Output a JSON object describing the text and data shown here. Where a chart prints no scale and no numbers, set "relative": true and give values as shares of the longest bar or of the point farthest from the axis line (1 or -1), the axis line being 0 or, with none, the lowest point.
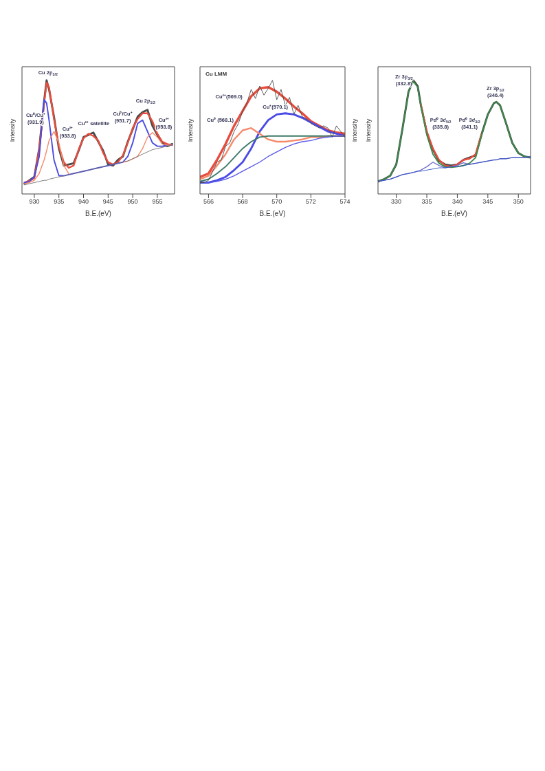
{
  "chart_data": [
    {
      "type": "line",
      "relative": true,
      "tick_labels": "x",
      "xlabel": "B.E.(eV)",
      "ylabel": "Intensity",
      "xlim": [
        927.5,
        958.5
      ],
      "xticks": [
        930,
        935,
        940,
        945,
        950,
        955
      ],
      "x": [
        928,
        929,
        930,
        931,
        932,
        932.5,
        933,
        934,
        935,
        936,
        937,
        938,
        939,
        940,
        941,
        942,
        943,
        944,
        945,
        946,
        947,
        948,
        949,
        950,
        951,
        952,
        953,
        954,
        955,
        956,
        957,
        958
      ],
      "series": [
        {
          "color": "#4a4a4a",
          "values": [
            0.09,
            0.12,
            0.15,
            0.4,
            0.82,
            1.0,
            0.92,
            0.68,
            0.4,
            0.25,
            0.26,
            0.27,
            0.38,
            0.5,
            0.52,
            0.54,
            0.46,
            0.38,
            0.26,
            0.25,
            0.3,
            0.33,
            0.46,
            0.57,
            0.68,
            0.72,
            0.74,
            0.6,
            0.52,
            0.45,
            0.42,
            0.44
          ]
        },
        {
          "color": "#e84c3d",
          "values": [
            0.1,
            0.115,
            0.14,
            0.39,
            0.8,
            0.98,
            0.94,
            0.66,
            0.42,
            0.28,
            0.23,
            0.25,
            0.39,
            0.49,
            0.53,
            0.51,
            0.47,
            0.36,
            0.28,
            0.26,
            0.28,
            0.34,
            0.45,
            0.58,
            0.66,
            0.71,
            0.71,
            0.64,
            0.53,
            0.46,
            0.44,
            0.43
          ]
        },
        {
          "color": "#4a4ae6",
          "values": [
            0.1,
            0.11,
            0.15,
            0.33,
            0.83,
            0.8,
            0.65,
            0.3,
            0.16,
            0.16,
            0.17,
            0.18,
            0.19,
            0.2,
            0.21,
            0.22,
            0.23,
            0.24,
            0.25,
            0.26,
            0.27,
            0.28,
            0.33,
            0.45,
            0.62,
            0.65,
            0.55,
            0.45,
            0.42,
            0.42,
            0.43,
            0.43
          ]
        },
        {
          "color": "#f58a6a",
          "values": [
            0.09,
            0.1,
            0.12,
            0.18,
            0.3,
            0.38,
            0.47,
            0.55,
            0.45,
            0.25,
            0.18,
            null,
            null,
            null,
            null,
            null,
            null,
            null,
            null,
            null,
            null,
            0.28,
            0.29,
            0.31,
            0.33,
            0.4,
            0.5,
            0.54,
            0.5,
            0.44,
            0.43,
            0.43
          ]
        },
        {
          "color": "#6e6e6e",
          "values": [
            0.08,
            0.09,
            0.1,
            0.11,
            0.12,
            0.12,
            0.13,
            0.14,
            0.15,
            0.16,
            0.17,
            0.18,
            0.19,
            0.2,
            0.21,
            0.22,
            0.23,
            0.24,
            0.25,
            0.26,
            0.27,
            0.28,
            0.29,
            0.31,
            0.33,
            0.35,
            0.37,
            0.39,
            0.4,
            0.41,
            0.42,
            0.43
          ]
        }
      ],
      "annotations": [
        "Cu 2p$_{3/2}$",
        "Cu⁰/Cu⁺\n(931.9)",
        "Cu²⁺\n(933.8)",
        "Cu²⁺ satellite",
        "Cu⁰/Cu⁺\n(951.7)",
        "Cu 2p$_{1/2}$",
        "Cu²⁺\n(953.8)"
      ]
    },
    {
      "type": "line",
      "relative": true,
      "tick_labels": "x",
      "title": "Cu LMM",
      "xlabel": "B.E.(eV)",
      "ylabel": "Intensity",
      "y2label": "Intensity",
      "xlim": [
        565.5,
        574
      ],
      "xticks": [
        566,
        568,
        570,
        572,
        574
      ],
      "x": [
        565.5,
        566,
        566.5,
        567,
        567.5,
        568,
        568.5,
        569,
        569.5,
        570,
        570.5,
        571,
        571.5,
        572,
        572.5,
        573,
        573.5,
        574
      ],
      "series": [
        {
          "color": "#e84c3d",
          "values": [
            0.15,
            0.18,
            0.3,
            0.44,
            0.6,
            0.73,
            0.86,
            0.93,
            0.94,
            0.9,
            0.84,
            0.77,
            0.71,
            0.64,
            0.6,
            0.56,
            0.54,
            0.53
          ]
        },
        {
          "color": "#4a4ae6",
          "values": [
            0.1,
            0.1,
            0.12,
            0.15,
            0.21,
            0.28,
            0.4,
            0.55,
            0.65,
            0.7,
            0.71,
            0.7,
            0.67,
            0.63,
            0.59,
            0.55,
            0.53,
            0.51
          ]
        },
        {
          "color": "#f58a6a",
          "values": [
            0.13,
            0.16,
            0.25,
            0.35,
            0.48,
            0.56,
            0.58,
            0.53,
            0.48,
            0.46,
            0.46,
            0.47,
            0.48,
            0.5,
            0.5,
            0.51,
            0.51,
            0.51
          ]
        },
        {
          "color": "#3e7a6a",
          "values": [
            0.11,
            0.13,
            0.18,
            0.24,
            0.32,
            0.4,
            0.46,
            0.5,
            0.51,
            0.51,
            0.51,
            0.51,
            0.51,
            0.51,
            0.51,
            0.51,
            0.51,
            0.51
          ]
        },
        {
          "color": "#5a5ae8",
          "values": [
            0.1,
            0.1,
            0.11,
            0.13,
            0.16,
            0.2,
            0.24,
            0.28,
            0.33,
            0.37,
            0.41,
            0.44,
            0.46,
            0.47,
            0.49,
            0.5,
            0.51,
            0.51
          ]
        },
        {
          "color": "#4a4a4a",
          "x": [
            565.5,
            565.75,
            566,
            566.25,
            566.5,
            566.75,
            567,
            567.25,
            567.5,
            567.75,
            568,
            568.25,
            568.5,
            568.75,
            569,
            569.25,
            569.5,
            569.75,
            570,
            570.25,
            570.5,
            570.75,
            571,
            571.25,
            571.5,
            571.75,
            572,
            572.25,
            572.5,
            572.75,
            573,
            573.25,
            573.5,
            573.75,
            574
          ],
          "values": [
            0.1,
            0.1,
            0.12,
            0.2,
            0.28,
            0.3,
            0.42,
            0.45,
            0.55,
            0.62,
            0.73,
            0.8,
            0.92,
            0.84,
            0.95,
            0.87,
            0.93,
            1.0,
            0.83,
            0.92,
            0.78,
            0.85,
            0.7,
            0.78,
            0.68,
            0.66,
            0.62,
            0.6,
            0.58,
            0.6,
            0.58,
            0.5,
            0.6,
            0.55,
            0.5
          ]
        }
      ],
      "annotations": [
        "Cu²⁺(569.0)",
        "Cu⁰ (568.1)",
        "Cu⁺(570.1)"
      ]
    },
    {
      "type": "line",
      "relative": true,
      "tick_labels": "x",
      "xlabel": "B.E.(eV)",
      "ylabel": "Intensity",
      "xlim": [
        327,
        352
      ],
      "xticks": [
        330,
        335,
        340,
        345,
        350
      ],
      "x": [
        327,
        328,
        329,
        330,
        331,
        332,
        332.8,
        333.5,
        334,
        335,
        336,
        337,
        338,
        339,
        340,
        341,
        342,
        343,
        344,
        345,
        346,
        346.4,
        347,
        348,
        349,
        350,
        351,
        352
      ],
      "series": [
        {
          "color": "#4a4a4a",
          "values": [
            0.11,
            0.13,
            0.16,
            0.26,
            0.57,
            0.9,
            1.0,
            0.95,
            0.79,
            0.54,
            0.39,
            0.29,
            0.26,
            0.25,
            0.26,
            0.3,
            0.32,
            0.34,
            0.53,
            0.7,
            0.8,
            0.81,
            0.78,
            0.62,
            0.45,
            0.36,
            0.33,
            0.32
          ]
        },
        {
          "color": "#e84c3d",
          "values": [
            null,
            null,
            null,
            null,
            null,
            null,
            null,
            null,
            0.79,
            0.55,
            0.4,
            0.3,
            0.25,
            0.24,
            0.26,
            0.3,
            0.31,
            0.35,
            0.53,
            null,
            null,
            null,
            null,
            null,
            null,
            null,
            null,
            null
          ]
        },
        {
          "color": "#3a8a4a",
          "values": [
            0.11,
            0.13,
            0.16,
            0.26,
            0.57,
            0.9,
            0.99,
            0.94,
            0.78,
            0.52,
            0.35,
            0.27,
            0.24,
            0.235,
            0.24,
            0.25,
            0.27,
            0.32,
            0.52,
            0.7,
            0.8,
            0.81,
            0.78,
            0.62,
            0.45,
            0.36,
            0.33,
            0.32
          ]
        },
        {
          "color": "#7070d0",
          "values": [
            0.11,
            0.12,
            0.13,
            0.15,
            0.17,
            0.18,
            0.19,
            0.2,
            0.21,
            0.24,
            0.28,
            0.25,
            0.23,
            0.24,
            0.25,
            0.275,
            0.26,
            0.27,
            0.28,
            0.29,
            0.3,
            0.3,
            0.31,
            0.31,
            0.32,
            0.32,
            0.32,
            0.33
          ]
        },
        {
          "color": "#3050c0",
          "values": [
            0.11,
            0.12,
            0.13,
            0.15,
            0.17,
            0.18,
            0.19,
            0.2,
            0.2,
            0.21,
            0.22,
            0.23,
            0.23,
            0.24,
            0.24,
            0.25,
            0.26,
            0.27,
            0.28,
            0.29,
            0.3,
            0.3,
            0.31,
            0.31,
            0.32,
            0.32,
            0.32,
            0.33
          ]
        }
      ],
      "annotations": [
        "Zr 3p$_{3/2}$\n(332.8)",
        "Zr 3p$_{1/2}$\n(346.4)",
        "Pd⁰ 3d$_{5/2}$\n(335.8)",
        "Pd⁰ 3d$_{3/2}$\n(341.1)"
      ]
    }
  ]
}
